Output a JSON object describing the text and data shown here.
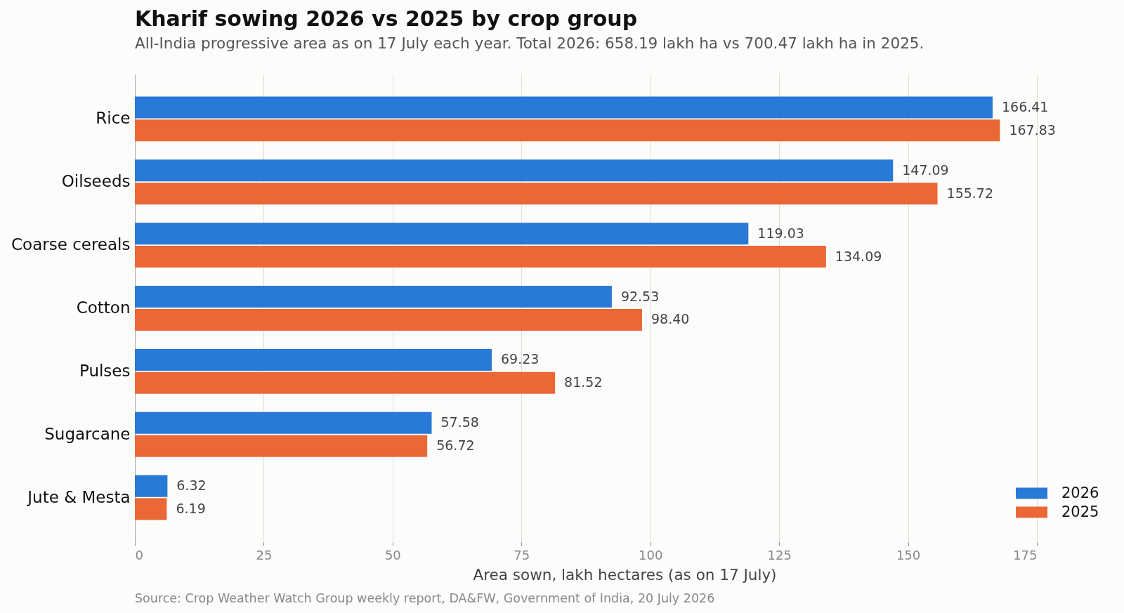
{
  "chart_data": {
    "type": "bar",
    "orientation": "horizontal",
    "title": "Kharif sowing 2026 vs 2025 by crop group",
    "subtitle": "All-India progressive area as on 17 July each year. Total 2026: 658.19 lakh ha vs 700.47 lakh ha in 2025.",
    "xlabel": "Area sown, lakh hectares (as on 17 July)",
    "annotations": [
      "Source: Crop Weather Watch Group weekly report, DA&FW, Government of India, 20 July 2026"
    ],
    "categories": [
      "Rice",
      "Oilseeds",
      "Coarse cereals",
      "Cotton",
      "Pulses",
      "Sugarcane",
      "Jute & Mesta"
    ],
    "series": [
      {
        "name": "2026",
        "color": "#2979d7",
        "values": [
          166.41,
          147.09,
          119.03,
          92.53,
          69.23,
          57.58,
          6.32
        ],
        "value_labels": [
          "166.41",
          "147.09",
          "119.03",
          "92.53",
          "69.23",
          "57.58",
          "6.32"
        ]
      },
      {
        "name": "2025",
        "color": "#eb6735",
        "values": [
          167.83,
          155.72,
          134.09,
          98.4,
          81.52,
          56.72,
          6.19
        ],
        "value_labels": [
          "167.83",
          "155.72",
          "134.09",
          "98.40",
          "81.52",
          "56.72",
          "6.19"
        ]
      }
    ],
    "xlim": [
      0,
      175
    ],
    "xticks": [
      0,
      25,
      50,
      75,
      100,
      125,
      150,
      175
    ],
    "grid": "x",
    "legend": "bottom right"
  }
}
